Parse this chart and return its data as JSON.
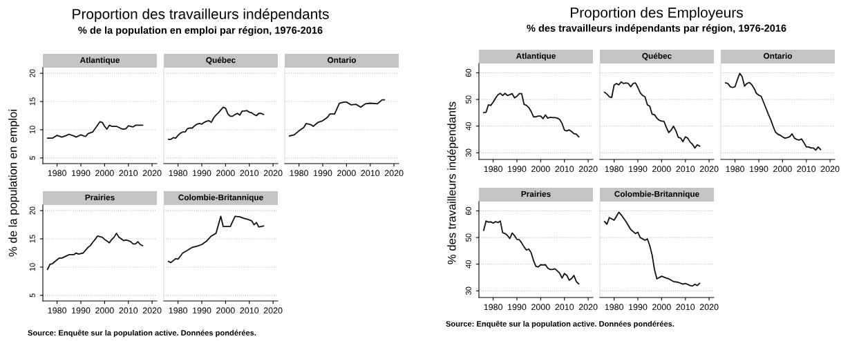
{
  "chart_data": [
    {
      "type": "other",
      "title": "Proportion des travailleurs indépendants",
      "subtitle": "% de la population en emploi par région, 1976-2016",
      "ylabel": "% de la population en emploi",
      "annotations": [
        "Source: Enquête sur la population active. Données pondérées."
      ]
    },
    {
      "type": "line",
      "title": "Atlantique",
      "xlim": [
        1974,
        2022
      ],
      "xticks": [
        1980,
        1990,
        2000,
        2010,
        2020
      ],
      "ylim": [
        4,
        21
      ],
      "yticks": [
        5,
        10,
        15,
        20
      ],
      "grid": "y",
      "series": [
        {
          "color": "#111111",
          "x": [
            1976,
            1978,
            1980,
            1982,
            1984,
            1985,
            1987,
            1988,
            1990,
            1992,
            1993,
            1995,
            1996,
            1997,
            1998,
            1999,
            2000,
            2001,
            2002,
            2003,
            2005,
            2007,
            2008,
            2009,
            2010,
            2011,
            2012,
            2013,
            2016
          ],
          "values": [
            8.5,
            8.5,
            9.0,
            8.7,
            9.0,
            9.2,
            8.9,
            8.7,
            9.1,
            8.8,
            9.3,
            9.6,
            10.2,
            10.8,
            11.4,
            11.3,
            10.6,
            10.1,
            10.8,
            10.6,
            10.6,
            10.2,
            10.1,
            10.2,
            10.7,
            10.6,
            10.5,
            10.8,
            10.8
          ]
        }
      ]
    },
    {
      "type": "line",
      "title": "Québec",
      "xlim": [
        1974,
        2022
      ],
      "xticks": [
        1980,
        1990,
        2000,
        2010,
        2020
      ],
      "ylim": [
        4,
        21
      ],
      "yticks": [
        5,
        10,
        15,
        20
      ],
      "grid": "y",
      "tick_labels": "x",
      "series": [
        {
          "color": "#111111",
          "x": [
            1976,
            1977,
            1978,
            1979,
            1980,
            1981,
            1982,
            1983,
            1984,
            1985,
            1986,
            1987,
            1988,
            1989,
            1990,
            1991,
            1992,
            1993,
            1994,
            1995,
            1996,
            1997,
            1998,
            1999,
            2000,
            2001,
            2002,
            2003,
            2004,
            2005,
            2006,
            2007,
            2008,
            2009,
            2010,
            2011,
            2012,
            2013,
            2014,
            2015,
            2016
          ],
          "values": [
            8.3,
            8.3,
            8.6,
            8.5,
            9.0,
            9.4,
            9.6,
            9.6,
            10.2,
            10.3,
            10.3,
            10.7,
            11.0,
            11.1,
            11.0,
            11.3,
            11.5,
            11.6,
            11.3,
            12.1,
            12.6,
            13.0,
            13.5,
            14.0,
            13.8,
            12.8,
            12.4,
            12.4,
            12.7,
            12.9,
            12.6,
            13.3,
            13.3,
            13.4,
            13.1,
            13.0,
            12.7,
            12.5,
            12.9,
            12.9,
            12.7
          ]
        }
      ]
    },
    {
      "type": "line",
      "title": "Ontario",
      "xlim": [
        1974,
        2022
      ],
      "xticks": [
        1980,
        1990,
        2000,
        2010,
        2020
      ],
      "ylim": [
        4,
        21
      ],
      "yticks": [
        5,
        10,
        15,
        20
      ],
      "grid": "y",
      "tick_labels": "x",
      "series": [
        {
          "color": "#111111",
          "x": [
            1976,
            1978,
            1980,
            1982,
            1983,
            1985,
            1986,
            1988,
            1990,
            1992,
            1993,
            1995,
            1997,
            1999,
            2000,
            2002,
            2004,
            2006,
            2008,
            2010,
            2013,
            2015,
            2016
          ],
          "values": [
            8.9,
            9.1,
            9.8,
            10.4,
            11.1,
            10.9,
            10.6,
            11.3,
            11.6,
            12.2,
            12.8,
            12.8,
            14.7,
            14.9,
            14.9,
            14.4,
            14.5,
            14.0,
            14.6,
            14.7,
            14.6,
            15.3,
            15.3
          ]
        }
      ]
    },
    {
      "type": "line",
      "title": "Prairies",
      "xlim": [
        1974,
        2022
      ],
      "xticks": [
        1980,
        1990,
        2000,
        2010,
        2020
      ],
      "ylim": [
        4,
        21
      ],
      "yticks": [
        5,
        10,
        15,
        20
      ],
      "grid": "y",
      "series": [
        {
          "color": "#111111",
          "x": [
            1976,
            1977,
            1978,
            1980,
            1981,
            1982,
            1984,
            1985,
            1987,
            1988,
            1989,
            1991,
            1992,
            1993,
            1994,
            1995,
            1996,
            1997,
            1998,
            1999,
            2000,
            2001,
            2002,
            2003,
            2004,
            2005,
            2006,
            2007,
            2008,
            2009,
            2010,
            2011,
            2012,
            2013,
            2014,
            2015,
            2016
          ],
          "values": [
            9.6,
            10.5,
            10.6,
            11.3,
            11.6,
            11.6,
            12.0,
            12.2,
            12.2,
            12.5,
            12.3,
            12.5,
            13.0,
            13.5,
            13.8,
            14.4,
            14.9,
            15.5,
            15.4,
            15.3,
            14.9,
            14.6,
            14.3,
            14.9,
            15.3,
            16.0,
            15.3,
            15.0,
            14.7,
            14.8,
            14.7,
            14.5,
            14.1,
            14.1,
            14.5,
            14.0,
            13.8
          ]
        }
      ]
    },
    {
      "type": "line",
      "title": "Colombie-Britannique",
      "xlim": [
        1974,
        2022
      ],
      "xticks": [
        1980,
        1990,
        2000,
        2010,
        2020
      ],
      "ylim": [
        4,
        21
      ],
      "yticks": [
        5,
        10,
        15,
        20
      ],
      "grid": "y",
      "tick_labels": "x",
      "series": [
        {
          "color": "#111111",
          "x": [
            1976,
            1977,
            1979,
            1980,
            1982,
            1984,
            1986,
            1988,
            1990,
            1992,
            1994,
            1996,
            1998,
            1999,
            2000,
            2002,
            2004,
            2006,
            2008,
            2009,
            2011,
            2012,
            2013,
            2014,
            2016
          ],
          "values": [
            11.0,
            10.8,
            11.5,
            11.4,
            12.5,
            13.0,
            13.5,
            13.7,
            14.0,
            14.6,
            15.5,
            16.0,
            19.0,
            17.2,
            17.2,
            17.2,
            19.0,
            18.9,
            18.6,
            18.5,
            18.2,
            17.5,
            17.9,
            17.1,
            17.3
          ]
        }
      ]
    },
    {
      "type": "other",
      "title": "Proportion des Employeurs",
      "subtitle": "% des travailleurs indépendants par région, 1976-2016",
      "ylabel": "% des travailleurs indépendants",
      "annotations": [
        "Source: Enquête sur la population active. Données pondérées."
      ]
    },
    {
      "type": "line",
      "title": "Atlantique",
      "xlim": [
        1974,
        2022
      ],
      "xticks": [
        1980,
        1990,
        2000,
        2010,
        2020
      ],
      "ylim": [
        27.5,
        63.5
      ],
      "yticks": [
        30,
        40,
        50,
        60
      ],
      "grid": "y",
      "series": [
        {
          "color": "#111111",
          "x": [
            1976,
            1977,
            1978,
            1979,
            1980,
            1981,
            1982,
            1983,
            1984,
            1985,
            1986,
            1987,
            1988,
            1989,
            1990,
            1991,
            1992,
            1993,
            1994,
            1995,
            1996,
            1997,
            1998,
            1999,
            2000,
            2001,
            2002,
            2003,
            2004,
            2005,
            2006,
            2007,
            2008,
            2009,
            2010,
            2011,
            2012,
            2013,
            2014,
            2015,
            2016
          ],
          "values": [
            45.1,
            45.2,
            48.0,
            47.8,
            49.0,
            50.5,
            51.8,
            52.3,
            51.5,
            52.3,
            51.5,
            51.8,
            52.2,
            50.6,
            51.2,
            52.2,
            52.2,
            48.2,
            47.8,
            47.0,
            45.5,
            43.5,
            43.5,
            43.8,
            43.8,
            42.8,
            44.2,
            43.0,
            43.3,
            43.2,
            43.2,
            43.0,
            42.5,
            41.0,
            38.5,
            38.2,
            38.6,
            38.0,
            37.2,
            37.0,
            36.0
          ]
        }
      ]
    },
    {
      "type": "line",
      "title": "Québec",
      "xlim": [
        1974,
        2022
      ],
      "xticks": [
        1980,
        1990,
        2000,
        2010,
        2020
      ],
      "ylim": [
        27.5,
        63.5
      ],
      "yticks": [
        30,
        40,
        50,
        60
      ],
      "grid": "y",
      "tick_labels": "x",
      "series": [
        {
          "color": "#111111",
          "x": [
            1976,
            1977,
            1978,
            1979,
            1980,
            1981,
            1982,
            1983,
            1984,
            1985,
            1986,
            1987,
            1988,
            1989,
            1990,
            1991,
            1992,
            1993,
            1994,
            1995,
            1996,
            1997,
            1998,
            1999,
            2000,
            2001,
            2002,
            2003,
            2004,
            2005,
            2006,
            2007,
            2008,
            2009,
            2010,
            2011,
            2012,
            2013,
            2014,
            2015,
            2016
          ],
          "values": [
            52.7,
            52.0,
            51.0,
            50.8,
            55.4,
            56.0,
            55.5,
            56.6,
            56.0,
            56.2,
            56.0,
            54.8,
            56.0,
            56.2,
            54.5,
            52.5,
            51.5,
            51.0,
            48.0,
            47.5,
            44.5,
            44.3,
            43.0,
            42.2,
            41.9,
            41.8,
            39.5,
            37.6,
            38.5,
            40.0,
            38.3,
            35.8,
            35.5,
            34.2,
            36.0,
            35.5,
            34.0,
            33.2,
            31.8,
            33.0,
            32.5
          ]
        }
      ]
    },
    {
      "type": "line",
      "title": "Ontario",
      "xlim": [
        1974,
        2022
      ],
      "xticks": [
        1980,
        1990,
        2000,
        2010,
        2020
      ],
      "ylim": [
        27.5,
        63.5
      ],
      "yticks": [
        30,
        40,
        50,
        60
      ],
      "grid": "y",
      "tick_labels": "x",
      "series": [
        {
          "color": "#111111",
          "x": [
            1976,
            1977,
            1978,
            1979,
            1980,
            1981,
            1982,
            1983,
            1984,
            1985,
            1986,
            1987,
            1988,
            1989,
            1990,
            1991,
            1992,
            1993,
            1994,
            1995,
            1996,
            1997,
            1998,
            1999,
            2000,
            2001,
            2002,
            2003,
            2004,
            2005,
            2006,
            2007,
            2008,
            2009,
            2010,
            2011,
            2012,
            2013,
            2014,
            2015,
            2016
          ],
          "values": [
            56.2,
            56.0,
            54.8,
            54.5,
            54.8,
            57.5,
            59.8,
            58.5,
            55.0,
            56.0,
            56.4,
            55.6,
            54.2,
            52.3,
            51.6,
            51.2,
            49.0,
            46.8,
            44.5,
            42.5,
            40.0,
            37.8,
            37.0,
            36.6,
            36.0,
            35.5,
            35.7,
            36.0,
            37.1,
            35.5,
            35.0,
            34.8,
            35.2,
            33.8,
            32.2,
            32.2,
            31.8,
            31.8,
            31.0,
            32.2,
            31.2
          ]
        }
      ]
    },
    {
      "type": "line",
      "title": "Prairies",
      "xlim": [
        1974,
        2022
      ],
      "xticks": [
        1980,
        1990,
        2000,
        2010,
        2020
      ],
      "ylim": [
        27.5,
        63.5
      ],
      "yticks": [
        30,
        40,
        50,
        60
      ],
      "grid": "y",
      "series": [
        {
          "color": "#111111",
          "x": [
            1976,
            1977,
            1978,
            1979,
            1980,
            1981,
            1982,
            1983,
            1984,
            1985,
            1986,
            1987,
            1988,
            1989,
            1990,
            1991,
            1992,
            1993,
            1994,
            1995,
            1996,
            1997,
            1998,
            1999,
            2000,
            2001,
            2002,
            2003,
            2004,
            2005,
            2006,
            2007,
            2008,
            2009,
            2010,
            2011,
            2012,
            2013,
            2014,
            2015,
            2016
          ],
          "values": [
            52.7,
            56.2,
            55.8,
            55.9,
            55.4,
            56.0,
            55.6,
            56.2,
            51.8,
            51.5,
            50.8,
            49.6,
            51.7,
            50.7,
            49.3,
            49.2,
            48.0,
            46.5,
            45.3,
            45.7,
            44.3,
            41.3,
            39.2,
            39.0,
            39.8,
            39.7,
            39.8,
            38.5,
            38.0,
            38.0,
            38.3,
            37.5,
            36.6,
            34.8,
            36.5,
            35.8,
            34.0,
            34.6,
            35.8,
            33.5,
            32.6
          ]
        }
      ]
    },
    {
      "type": "line",
      "title": "Colombie-Britannique",
      "xlim": [
        1974,
        2022
      ],
      "xticks": [
        1980,
        1990,
        2000,
        2010,
        2020
      ],
      "ylim": [
        27.5,
        63.5
      ],
      "yticks": [
        30,
        40,
        50,
        60
      ],
      "grid": "y",
      "tick_labels": "x",
      "series": [
        {
          "color": "#111111",
          "x": [
            1976,
            1977,
            1978,
            1980,
            1982,
            1983,
            1985,
            1987,
            1989,
            1990,
            1991,
            1993,
            1994,
            1995,
            1996,
            1997,
            1998,
            2000,
            2002,
            2003,
            2005,
            2007,
            2009,
            2010,
            2012,
            2013,
            2014,
            2015,
            2016
          ],
          "values": [
            56.0,
            55.0,
            57.5,
            56.5,
            59.5,
            58.5,
            56.0,
            53.0,
            51.5,
            52.0,
            50.0,
            49.0,
            49.5,
            47.0,
            43.5,
            38.0,
            34.5,
            35.5,
            34.8,
            34.5,
            33.5,
            33.2,
            32.5,
            32.8,
            32.0,
            31.8,
            32.5,
            32.0,
            32.8
          ]
        }
      ]
    }
  ]
}
